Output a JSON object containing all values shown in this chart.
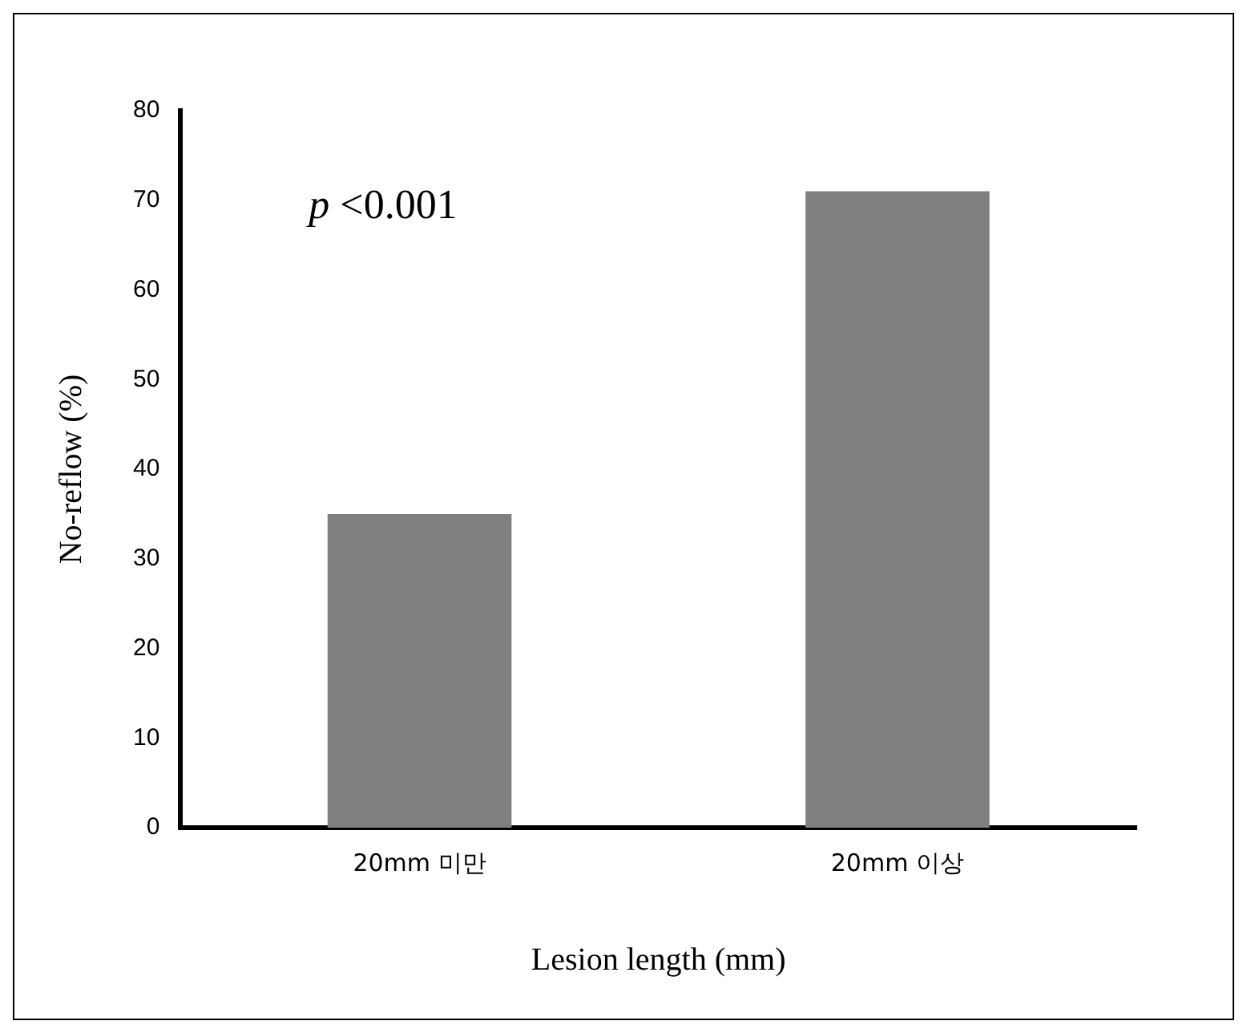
{
  "chart_data": {
    "type": "bar",
    "categories": [
      "20mm 미만",
      "20mm 이상"
    ],
    "values": [
      35,
      71
    ],
    "color": "#808080",
    "xlabel": "Lesion length (mm)",
    "ylabel": "No-reflow (%)",
    "ylim": [
      0,
      80
    ],
    "yticks": [
      0,
      10,
      20,
      30,
      40,
      50,
      60,
      70,
      80
    ],
    "grid": false,
    "annotations": [
      "p <0.001"
    ]
  }
}
